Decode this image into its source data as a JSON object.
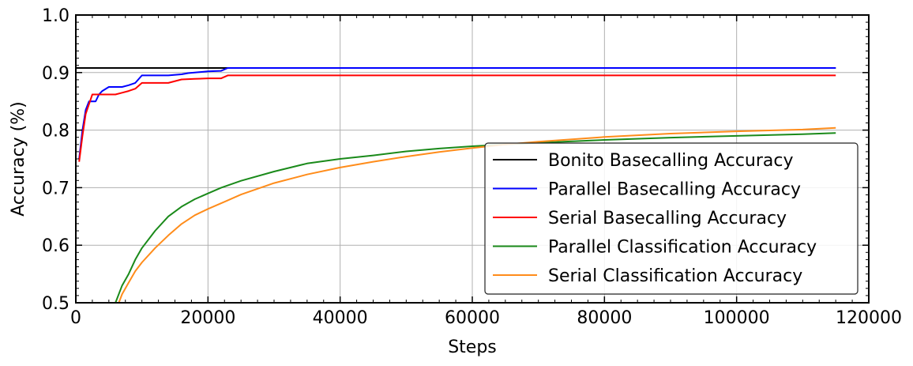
{
  "chart_data": {
    "type": "line",
    "xlabel": "Steps",
    "ylabel": "Accuracy (%)",
    "xlim": [
      0,
      120000
    ],
    "ylim": [
      0.5,
      1.0
    ],
    "xticks": [
      "0",
      "20000",
      "40000",
      "60000",
      "80000",
      "100000",
      "120000"
    ],
    "yticks": [
      "0.5",
      "0.6",
      "0.7",
      "0.8",
      "0.9",
      "1.0"
    ],
    "grid": true,
    "legend_position": "center-right",
    "series": [
      {
        "name": "Bonito Basecalling Accuracy",
        "color": "#000000",
        "x": [
          0,
          115000
        ],
        "y": [
          0.908,
          0.908
        ]
      },
      {
        "name": "Parallel Basecalling Accuracy",
        "color": "#0000ff",
        "x": [
          500,
          1000,
          1500,
          2000,
          2500,
          3000,
          3500,
          4000,
          5000,
          6000,
          7000,
          8000,
          9000,
          10000,
          12000,
          14000,
          16000,
          17000,
          18000,
          20000,
          22000,
          23000,
          25000,
          40000,
          60000,
          80000,
          100000,
          115000
        ],
        "y": [
          0.75,
          0.8,
          0.835,
          0.85,
          0.85,
          0.85,
          0.862,
          0.868,
          0.875,
          0.875,
          0.875,
          0.878,
          0.882,
          0.895,
          0.895,
          0.895,
          0.897,
          0.899,
          0.9,
          0.902,
          0.903,
          0.908,
          0.908,
          0.908,
          0.908,
          0.908,
          0.908,
          0.908
        ]
      },
      {
        "name": "Serial Basecalling Accuracy",
        "color": "#ff0000",
        "x": [
          500,
          1000,
          1500,
          2000,
          2500,
          3000,
          4000,
          5000,
          6000,
          7000,
          8000,
          9000,
          10000,
          12000,
          14000,
          16000,
          18000,
          20000,
          22000,
          23000,
          25000,
          40000,
          60000,
          80000,
          100000,
          115000
        ],
        "y": [
          0.745,
          0.79,
          0.828,
          0.845,
          0.862,
          0.862,
          0.862,
          0.862,
          0.862,
          0.865,
          0.868,
          0.872,
          0.882,
          0.882,
          0.882,
          0.888,
          0.889,
          0.89,
          0.89,
          0.895,
          0.895,
          0.895,
          0.895,
          0.895,
          0.895,
          0.895
        ]
      },
      {
        "name": "Parallel Classification Accuracy",
        "color": "#1a8a1a",
        "x": [
          6000,
          7000,
          8000,
          9000,
          10000,
          12000,
          14000,
          16000,
          18000,
          20000,
          22000,
          25000,
          30000,
          35000,
          40000,
          45000,
          50000,
          55000,
          60000,
          65000,
          70000,
          80000,
          90000,
          100000,
          110000,
          115000
        ],
        "y": [
          0.5,
          0.53,
          0.55,
          0.575,
          0.595,
          0.625,
          0.65,
          0.667,
          0.68,
          0.69,
          0.7,
          0.712,
          0.728,
          0.742,
          0.75,
          0.756,
          0.763,
          0.768,
          0.772,
          0.775,
          0.778,
          0.783,
          0.787,
          0.79,
          0.793,
          0.795
        ]
      },
      {
        "name": "Serial Classification Accuracy",
        "color": "#ff8c1a",
        "x": [
          6500,
          7000,
          8000,
          9000,
          10000,
          12000,
          14000,
          16000,
          18000,
          20000,
          22000,
          25000,
          30000,
          35000,
          40000,
          45000,
          50000,
          55000,
          60000,
          65000,
          70000,
          80000,
          90000,
          100000,
          110000,
          115000
        ],
        "y": [
          0.5,
          0.515,
          0.535,
          0.555,
          0.57,
          0.595,
          0.617,
          0.637,
          0.652,
          0.663,
          0.673,
          0.688,
          0.708,
          0.723,
          0.735,
          0.745,
          0.754,
          0.762,
          0.769,
          0.775,
          0.78,
          0.788,
          0.794,
          0.798,
          0.801,
          0.804
        ]
      }
    ]
  }
}
